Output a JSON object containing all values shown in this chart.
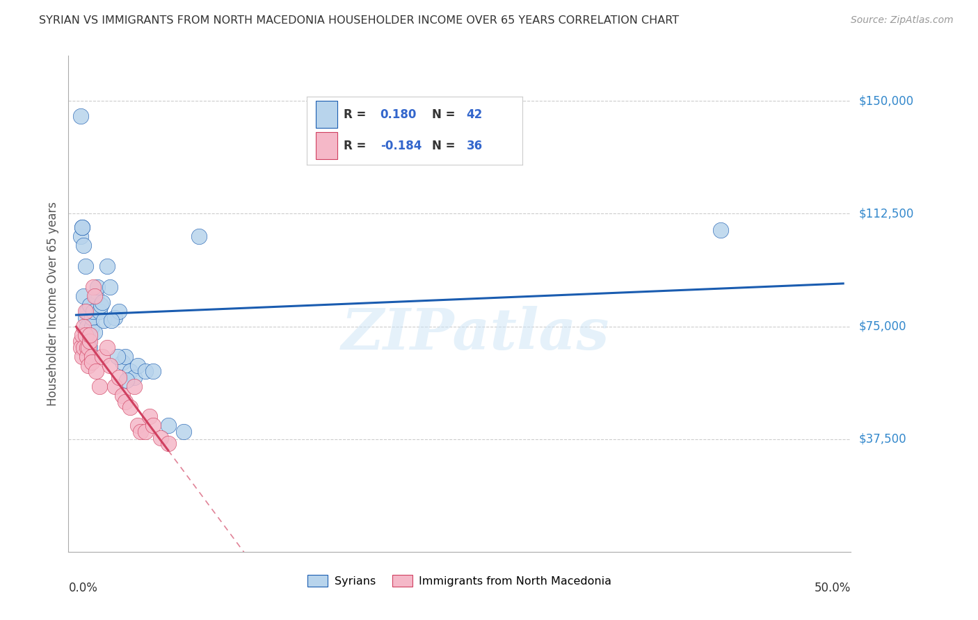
{
  "title": "SYRIAN VS IMMIGRANTS FROM NORTH MACEDONIA HOUSEHOLDER INCOME OVER 65 YEARS CORRELATION CHART",
  "source": "Source: ZipAtlas.com",
  "ylabel": "Householder Income Over 65 years",
  "watermark": "ZIPatlas",
  "color_syrian": "#b8d4ec",
  "color_mac": "#f5b8c8",
  "color_line_syrian": "#1a5cb0",
  "color_line_mac": "#d04060",
  "legend_R1": "0.180",
  "legend_N1": "42",
  "legend_R2": "-0.184",
  "legend_N2": "36",
  "syrians_x": [
    0.003,
    0.004,
    0.004,
    0.005,
    0.005,
    0.006,
    0.006,
    0.007,
    0.007,
    0.008,
    0.008,
    0.009,
    0.009,
    0.01,
    0.01,
    0.011,
    0.012,
    0.013,
    0.014,
    0.015,
    0.016,
    0.018,
    0.02,
    0.022,
    0.025,
    0.028,
    0.03,
    0.032,
    0.035,
    0.038,
    0.04,
    0.045,
    0.05,
    0.06,
    0.07,
    0.08,
    0.42,
    0.003,
    0.017,
    0.023,
    0.027,
    0.033
  ],
  "syrians_y": [
    105000,
    108000,
    108000,
    102000,
    85000,
    95000,
    78000,
    80000,
    75000,
    72000,
    70000,
    68000,
    82000,
    75000,
    78000,
    80000,
    73000,
    85000,
    88000,
    80000,
    82000,
    77000,
    95000,
    88000,
    78000,
    80000,
    63000,
    65000,
    60000,
    58000,
    62000,
    60000,
    60000,
    42000,
    40000,
    105000,
    107000,
    145000,
    83000,
    77000,
    65000,
    57000
  ],
  "mac_x": [
    0.003,
    0.003,
    0.004,
    0.004,
    0.005,
    0.005,
    0.006,
    0.006,
    0.007,
    0.007,
    0.008,
    0.008,
    0.009,
    0.009,
    0.01,
    0.01,
    0.011,
    0.012,
    0.013,
    0.015,
    0.017,
    0.02,
    0.022,
    0.025,
    0.028,
    0.03,
    0.032,
    0.035,
    0.038,
    0.04,
    0.042,
    0.045,
    0.048,
    0.05,
    0.055,
    0.06
  ],
  "mac_y": [
    70000,
    68000,
    65000,
    72000,
    68000,
    75000,
    80000,
    72000,
    68000,
    65000,
    62000,
    68000,
    70000,
    72000,
    65000,
    63000,
    88000,
    85000,
    60000,
    55000,
    65000,
    68000,
    62000,
    55000,
    58000,
    52000,
    50000,
    48000,
    55000,
    42000,
    40000,
    40000,
    45000,
    42000,
    38000,
    36000
  ],
  "xlim": [
    -0.005,
    0.505
  ],
  "ylim": [
    0,
    165000
  ],
  "ytick_vals": [
    37500,
    75000,
    112500,
    150000
  ],
  "ytick_labels": [
    "$37,500",
    "$75,000",
    "$112,500",
    "$150,000"
  ]
}
